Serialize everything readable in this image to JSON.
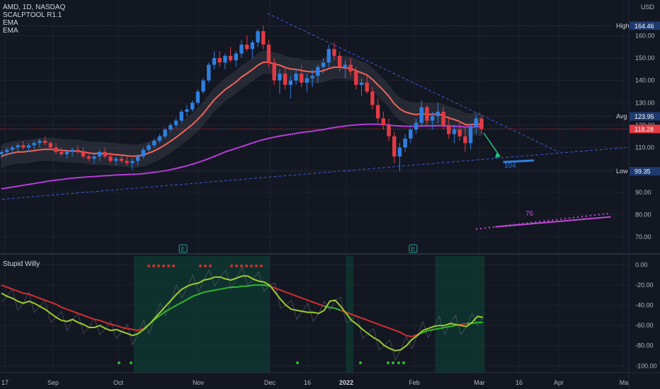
{
  "legend": {
    "symbol": "AMD, 1D, NASDAQ",
    "indicators": [
      "SCALPTOOL R1.1",
      "EMA",
      "EMA"
    ],
    "subpane_title": "Stupid Willy"
  },
  "currency": "USD",
  "colors": {
    "background": "#131722",
    "up": "#2f7fe0",
    "down": "#e23b45",
    "neutral": "#8c8f98",
    "ema_fast": "#f0645a",
    "ema_slow": "#b43cd6",
    "trend": "#3c5ad7",
    "oscillator": "#9ccc2a",
    "signal_green": "#2eb82e",
    "signal_red": "#d32f2f",
    "zone": "#0f3b33",
    "projection": "#c04ad6",
    "arrow": "#26c281"
  },
  "price_axis": {
    "ticks": [
      "160.00",
      "150.00",
      "140.00",
      "130.00",
      "120.00",
      "110.00",
      "100.00",
      "90.00",
      "80.00",
      "70.00"
    ],
    "tick_values": [
      160,
      150,
      140,
      130,
      120,
      110,
      100,
      90,
      80,
      70
    ],
    "labels": [
      {
        "name": "High",
        "value": "164.46",
        "v": 164.46,
        "color": "#1e3a6e"
      },
      {
        "name": "Avg",
        "value": "123.95",
        "v": 123.95,
        "color": "#1e3a6e"
      },
      {
        "name": "",
        "value": "118.28",
        "v": 118.28,
        "color": "#e23b45"
      },
      {
        "name": "Low",
        "value": "99.35",
        "v": 99.35,
        "color": "#1e3a6e"
      }
    ]
  },
  "osc_axis": {
    "ticks": [
      "0.00",
      "-20.00",
      "-40.00",
      "-60.00",
      "-80.00",
      "-100.00"
    ],
    "tick_values": [
      0,
      -20,
      -40,
      -60,
      -80,
      -100
    ]
  },
  "time_axis": {
    "labels": [
      "17",
      "Sep",
      "Oct",
      "Nov",
      "Dec",
      "16",
      "2022",
      "Feb",
      "Mar",
      "16",
      "Apr",
      "Ma"
    ],
    "bold": [
      "2022"
    ]
  },
  "annotations": {
    "target_104": "104",
    "target_76": "76",
    "earnings_marker": "E"
  },
  "chart_data": [
    {
      "type": "candlestick",
      "title": "AMD, 1D, NASDAQ",
      "ylim": [
        64,
        175
      ],
      "highs_lows": {
        "high": 164.46,
        "low": 99.35,
        "avg": 123.95,
        "last": 118.28
      },
      "ohlc_daily": [
        [
          107,
          109,
          105,
          108
        ],
        [
          108,
          110,
          106,
          109
        ],
        [
          109,
          111,
          107,
          110
        ],
        [
          110,
          112,
          108,
          111
        ],
        [
          111,
          113,
          109,
          110
        ],
        [
          110,
          112,
          108,
          111
        ],
        [
          111,
          113,
          109,
          112
        ],
        [
          112,
          114,
          110,
          113
        ],
        [
          113,
          115,
          111,
          112
        ],
        [
          112,
          113,
          109,
          110
        ],
        [
          110,
          112,
          107,
          108
        ],
        [
          108,
          110,
          106,
          107
        ],
        [
          107,
          109,
          105,
          108
        ],
        [
          108,
          110,
          106,
          109
        ],
        [
          109,
          111,
          107,
          108
        ],
        [
          108,
          110,
          105,
          106
        ],
        [
          106,
          108,
          104,
          105
        ],
        [
          105,
          107,
          103,
          106
        ],
        [
          106,
          109,
          104,
          108
        ],
        [
          108,
          110,
          105,
          106
        ],
        [
          106,
          108,
          103,
          104
        ],
        [
          104,
          106,
          102,
          105
        ],
        [
          105,
          107,
          103,
          104
        ],
        [
          104,
          106,
          102,
          103
        ],
        [
          103,
          105,
          100,
          104
        ],
        [
          104,
          107,
          102,
          106
        ],
        [
          106,
          110,
          105,
          109
        ],
        [
          109,
          112,
          108,
          111
        ],
        [
          111,
          114,
          110,
          113
        ],
        [
          113,
          116,
          112,
          115
        ],
        [
          115,
          119,
          114,
          118
        ],
        [
          118,
          121,
          117,
          120
        ],
        [
          120,
          123,
          119,
          122
        ],
        [
          122,
          127,
          121,
          126
        ],
        [
          126,
          129,
          124,
          127
        ],
        [
          127,
          131,
          126,
          130
        ],
        [
          130,
          136,
          129,
          135
        ],
        [
          135,
          141,
          134,
          140
        ],
        [
          140,
          148,
          139,
          147
        ],
        [
          147,
          153,
          145,
          150
        ],
        [
          150,
          153,
          146,
          148
        ],
        [
          148,
          152,
          145,
          151
        ],
        [
          151,
          155,
          148,
          149
        ],
        [
          149,
          153,
          146,
          152
        ],
        [
          152,
          158,
          150,
          156
        ],
        [
          156,
          160,
          153,
          154
        ],
        [
          154,
          158,
          150,
          157
        ],
        [
          157,
          163,
          155,
          162
        ],
        [
          162,
          164.46,
          154,
          156
        ],
        [
          156,
          158,
          146,
          148
        ],
        [
          148,
          150,
          138,
          140
        ],
        [
          140,
          145,
          134,
          143
        ],
        [
          143,
          146,
          136,
          138
        ],
        [
          138,
          142,
          132,
          140
        ],
        [
          140,
          145,
          138,
          143
        ],
        [
          143,
          147,
          137,
          139
        ],
        [
          139,
          143,
          135,
          141
        ],
        [
          141,
          145,
          137,
          142
        ],
        [
          142,
          147,
          139,
          146
        ],
        [
          146,
          150,
          143,
          148
        ],
        [
          148,
          156,
          146,
          154
        ],
        [
          154,
          157,
          149,
          151
        ],
        [
          151,
          153,
          144,
          146
        ],
        [
          146,
          149,
          141,
          147
        ],
        [
          147,
          150,
          142,
          144
        ],
        [
          144,
          146,
          136,
          138
        ],
        [
          138,
          141,
          133,
          139
        ],
        [
          139,
          143,
          134,
          135
        ],
        [
          135,
          137,
          127,
          129
        ],
        [
          129,
          132,
          121,
          123
        ],
        [
          123,
          126,
          118,
          120
        ],
        [
          120,
          123,
          113,
          115
        ],
        [
          115,
          117,
          103,
          106
        ],
        [
          106,
          112,
          99.35,
          110
        ],
        [
          110,
          116,
          108,
          114
        ],
        [
          114,
          120,
          112,
          118
        ],
        [
          118,
          123,
          116,
          121
        ],
        [
          121,
          131,
          119,
          128
        ],
        [
          128,
          129,
          120,
          122
        ],
        [
          122,
          126,
          118,
          124
        ],
        [
          124,
          130,
          121,
          126
        ],
        [
          126,
          128,
          118,
          120
        ],
        [
          120,
          124,
          114,
          116
        ],
        [
          116,
          120,
          112,
          118
        ],
        [
          118,
          122,
          113,
          115
        ],
        [
          115,
          119,
          108,
          112
        ],
        [
          112,
          121,
          109,
          119
        ],
        [
          119,
          125,
          116,
          123
        ],
        [
          123,
          124,
          116,
          118.28
        ]
      ],
      "ema_fast": {
        "name": "EMA",
        "values": [
          106,
          107,
          107.5,
          108,
          108,
          108.3,
          108.6,
          109,
          109.2,
          109.2,
          109,
          108.7,
          108.5,
          108.4,
          108.3,
          108,
          107.6,
          107.3,
          107.4,
          107.3,
          107,
          106.8,
          106.6,
          106.3,
          106.1,
          106.2,
          106.7,
          107.5,
          108.5,
          109.7,
          111.2,
          112.8,
          114.5,
          116.4,
          118.3,
          120.3,
          122.6,
          125.2,
          128.3,
          131.3,
          133.6,
          135.9,
          137.6,
          139.3,
          141.5,
          143.1,
          144.8,
          146.8,
          148.1,
          148.1,
          147.3,
          146.8,
          145.8,
          145.1,
          144.9,
          144.4,
          144,
          143.8,
          143.9,
          144.3,
          145.3,
          145.9,
          145.9,
          145.6,
          145.4,
          144.3,
          143.4,
          142.4,
          140.4,
          138,
          135.6,
          132.9,
          129.6,
          127.3,
          125.9,
          125.2,
          124.7,
          125.2,
          124.8,
          124.8,
          124.9,
          124.3,
          123.2,
          122.5,
          121.6,
          120.3,
          120.1,
          120.6,
          120.2
        ]
      },
      "ema_slow": {
        "name": "EMA",
        "values": [
          91.5,
          91.9,
          92.3,
          92.7,
          93.1,
          93.5,
          93.9,
          94.3,
          94.7,
          95.1,
          95.4,
          95.7,
          96,
          96.3,
          96.5,
          96.7,
          96.9,
          97,
          97.2,
          97.4,
          97.5,
          97.7,
          97.8,
          97.9,
          98,
          98.1,
          98.3,
          98.6,
          98.9,
          99.2,
          99.6,
          100.1,
          100.6,
          101.2,
          101.8,
          102.5,
          103.3,
          104.1,
          105,
          106,
          107,
          108,
          108.8,
          109.6,
          110.4,
          111.2,
          112,
          112.8,
          113.5,
          114.1,
          114.6,
          115.1,
          115.5,
          115.9,
          116.3,
          116.7,
          117,
          117.3,
          117.7,
          118,
          118.5,
          118.9,
          119.3,
          119.6,
          119.9,
          120.1,
          120.3,
          120.4,
          120.4,
          120.4,
          120.3,
          120.1,
          119.7,
          119.6,
          119.5,
          119.5,
          119.5,
          119.6,
          119.6,
          119.6,
          119.7,
          119.7,
          119.6,
          119.5,
          119.4,
          119.2,
          119.2,
          119.3,
          119.3
        ]
      },
      "trendlines": [
        {
          "from": [
            "2021-08-13",
            86.5
          ],
          "to": [
            "2022-05-02",
            110
          ]
        },
        {
          "from": [
            "2021-11-30",
            170
          ],
          "to": [
            "2022-04-01",
            108
          ]
        }
      ],
      "projections": [
        {
          "label": "104",
          "from": [
            "2022-03-10",
            103.5
          ],
          "to": [
            "2022-03-22",
            104.2
          ]
        },
        {
          "label": "76",
          "from": [
            "2022-03-07",
            74.5
          ],
          "to": [
            "2022-04-25",
            79
          ]
        }
      ]
    },
    {
      "type": "line",
      "title": "Stupid Willy",
      "ylim": [
        -104,
        6
      ],
      "series": [
        {
          "name": "",
          "values": [
            -28,
            -31,
            -33,
            -36,
            -38,
            -36,
            -38,
            -41,
            -44,
            -48,
            -52,
            -55,
            -56,
            -54,
            -57,
            -59,
            -62,
            -62,
            -60,
            -63,
            -65,
            -64,
            -66,
            -68,
            -70,
            -68,
            -64,
            -59,
            -53,
            -47,
            -41,
            -35,
            -29,
            -24,
            -21,
            -19,
            -18,
            -15,
            -14,
            -12,
            -12,
            -14,
            -15,
            -13,
            -11,
            -11,
            -14,
            -16,
            -17,
            -20,
            -27,
            -34,
            -40,
            -44,
            -45,
            -46,
            -47,
            -47,
            -48,
            -45,
            -36,
            -35,
            -41,
            -48,
            -55,
            -59,
            -64,
            -68,
            -72,
            -75,
            -80,
            -83,
            -85,
            -84,
            -80,
            -74,
            -70,
            -65,
            -63,
            -61,
            -60,
            -60,
            -58,
            -59,
            -60,
            -61,
            -57,
            -51,
            -52
          ]
        },
        {
          "name": "",
          "values": [
            -20,
            -22,
            -24,
            -26,
            -28,
            -29,
            -31,
            -33,
            -35,
            -37,
            -39,
            -42,
            -44,
            -46,
            -48,
            -50,
            -52,
            -54,
            -55,
            -57,
            -59,
            -60,
            -62,
            -63,
            -64,
            -65,
            -63,
            -59,
            -54,
            -50,
            -46,
            -43,
            -40,
            -37,
            -34,
            -31,
            -29,
            -27,
            -26,
            -25,
            -24,
            -23,
            -22,
            -22,
            -21,
            -21,
            -20,
            -20,
            -20,
            -21,
            -23,
            -25,
            -27,
            -29,
            -31,
            -33,
            -35,
            -37,
            -39,
            -41,
            -42,
            -43,
            -45,
            -47,
            -49,
            -51,
            -53,
            -55,
            -57,
            -59,
            -61,
            -63,
            -65,
            -67,
            -70,
            -71,
            -69,
            -67,
            -65,
            -64,
            -63,
            -62,
            -61,
            -60,
            -59,
            -58,
            -58,
            -57,
            -57
          ]
        }
      ],
      "zones": [
        [
          "2021-10-07",
          "2021-12-01"
        ],
        [
          "2022-01-03",
          "2022-01-06"
        ],
        [
          "2022-02-10",
          "2022-03-03"
        ]
      ]
    }
  ]
}
